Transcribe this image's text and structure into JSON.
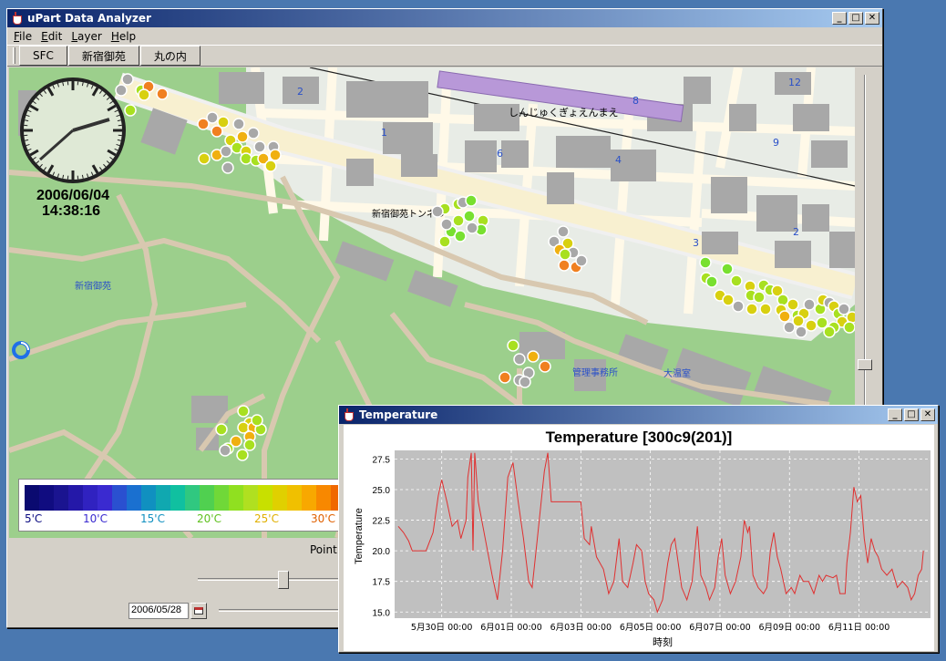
{
  "main_window": {
    "title": "uPart Data Analyzer",
    "menus": [
      "File",
      "Edit",
      "Layer",
      "Help"
    ],
    "toolbar": [
      "SFC",
      "新宿御苑",
      "丸の内"
    ],
    "date_display": "2006/06/04",
    "time_display": "14:38:16",
    "point_label": "Point:",
    "date_field": "2006/05/28"
  },
  "map": {
    "labels": {
      "tunnel": "新宿御苑トンネル",
      "kana": "しんじゅくぎょえんまえ",
      "gyoen": "新宿御苑",
      "office": "管理事務所",
      "greenhouse": "大温室",
      "n2a": "2",
      "n1": "1",
      "n6": "6",
      "n4": "4",
      "n8": "8",
      "n12": "12",
      "n9": "9",
      "n3": "3",
      "n2b": "2"
    },
    "colors": {
      "grass": "#9ccf8c",
      "road": "#fff9e8",
      "path": "#d8c8b0",
      "urban": "#e8ece6",
      "building": "#a8a8a8",
      "station": "#b898d8",
      "block_label": "#2a50c8"
    }
  },
  "legend": {
    "labels": [
      "5'C",
      "10'C",
      "15'C",
      "20'C",
      "25'C",
      "30'C"
    ],
    "label_colors": [
      "#0a0a80",
      "#3a2ad0",
      "#1090c0",
      "#60c020",
      "#e0b000",
      "#e06000"
    ],
    "colors": [
      "#0a0a70",
      "#100c80",
      "#1a1490",
      "#2418a8",
      "#3022c0",
      "#3a2ad0",
      "#2a50d0",
      "#1a70d0",
      "#1090c0",
      "#10a8b0",
      "#10c0a0",
      "#30c880",
      "#50d050",
      "#70d838",
      "#90e020",
      "#b0e020",
      "#c8e000",
      "#e0d000",
      "#f0c000",
      "#f8a800",
      "#f88800",
      "#f06800"
    ]
  },
  "sensor_dots": {
    "colors": {
      "gray": "#a8a8a8",
      "orange": "#f08020",
      "amber": "#f0b010",
      "yellow": "#d8d010",
      "lime": "#a8e020",
      "green": "#78e030"
    }
  },
  "chart_window": {
    "title": "Temperature"
  },
  "chart_data": {
    "type": "line",
    "title": "Temperature [300c9(201)]",
    "xlabel": "時刻",
    "ylabel": "Temperature",
    "ylim": [
      14.5,
      28.2
    ],
    "yticks": [
      "15.0",
      "17.5",
      "20.0",
      "22.5",
      "25.0",
      "27.5"
    ],
    "xticks": [
      "5月30日 00:00",
      "6月01日 00:00",
      "6月03日 00:00",
      "6月05日 00:00",
      "6月07日 00:00",
      "6月09日 00:00",
      "6月11日 00:00"
    ],
    "series_color": "#e03030",
    "x_start": "2006-05-28 18:00",
    "points": [
      [
        0,
        22
      ],
      [
        0.15,
        21.5
      ],
      [
        0.3,
        20.8
      ],
      [
        0.4,
        20
      ],
      [
        0.8,
        20
      ],
      [
        1.0,
        21.5
      ],
      [
        1.15,
        24.5
      ],
      [
        1.25,
        25.8
      ],
      [
        1.4,
        24
      ],
      [
        1.55,
        22
      ],
      [
        1.7,
        22.5
      ],
      [
        1.8,
        21
      ],
      [
        1.95,
        22.5
      ],
      [
        2.0,
        26
      ],
      [
        2.1,
        28
      ],
      [
        2.15,
        20
      ],
      [
        2.2,
        28
      ],
      [
        2.3,
        24
      ],
      [
        2.5,
        21
      ],
      [
        2.7,
        18
      ],
      [
        2.85,
        16
      ],
      [
        3.0,
        20
      ],
      [
        3.15,
        26
      ],
      [
        3.3,
        27.2
      ],
      [
        3.45,
        24
      ],
      [
        3.6,
        21
      ],
      [
        3.75,
        17.5
      ],
      [
        3.85,
        17
      ],
      [
        4.0,
        21
      ],
      [
        4.2,
        26.5
      ],
      [
        4.3,
        28
      ],
      [
        4.4,
        24
      ],
      [
        4.5,
        24
      ],
      [
        5.25,
        24
      ],
      [
        5.35,
        21
      ],
      [
        5.5,
        20.5
      ],
      [
        5.55,
        22
      ],
      [
        5.7,
        19.5
      ],
      [
        5.9,
        18.5
      ],
      [
        6.05,
        16.5
      ],
      [
        6.2,
        17.5
      ],
      [
        6.35,
        21
      ],
      [
        6.45,
        17.5
      ],
      [
        6.6,
        17
      ],
      [
        6.75,
        19
      ],
      [
        6.85,
        20.5
      ],
      [
        7.0,
        20
      ],
      [
        7.1,
        17.5
      ],
      [
        7.2,
        16.5
      ],
      [
        7.35,
        16
      ],
      [
        7.45,
        15
      ],
      [
        7.6,
        16
      ],
      [
        7.75,
        19
      ],
      [
        7.85,
        20.5
      ],
      [
        7.95,
        21
      ],
      [
        8.05,
        19
      ],
      [
        8.15,
        17
      ],
      [
        8.3,
        16
      ],
      [
        8.45,
        17.5
      ],
      [
        8.6,
        22
      ],
      [
        8.7,
        18
      ],
      [
        8.85,
        17
      ],
      [
        8.95,
        16
      ],
      [
        9.1,
        17
      ],
      [
        9.2,
        19.5
      ],
      [
        9.3,
        21
      ],
      [
        9.4,
        18
      ],
      [
        9.55,
        16.5
      ],
      [
        9.7,
        17.5
      ],
      [
        9.85,
        19.5
      ],
      [
        9.95,
        22.5
      ],
      [
        10.05,
        21.5
      ],
      [
        10.1,
        22
      ],
      [
        10.2,
        18
      ],
      [
        10.35,
        17
      ],
      [
        10.5,
        16.5
      ],
      [
        10.6,
        17
      ],
      [
        10.7,
        20
      ],
      [
        10.8,
        21.5
      ],
      [
        10.9,
        19.5
      ],
      [
        11.0,
        18.5
      ],
      [
        11.15,
        16.5
      ],
      [
        11.3,
        17
      ],
      [
        11.4,
        16.5
      ],
      [
        11.55,
        18
      ],
      [
        11.65,
        17.5
      ],
      [
        11.8,
        17.5
      ],
      [
        11.95,
        16.5
      ],
      [
        12.1,
        18
      ],
      [
        12.2,
        17.5
      ],
      [
        12.3,
        18
      ],
      [
        12.5,
        17.8
      ],
      [
        12.6,
        18
      ],
      [
        12.7,
        16.5
      ],
      [
        12.85,
        16.5
      ],
      [
        12.9,
        19
      ],
      [
        13.0,
        21.5
      ],
      [
        13.1,
        25.2
      ],
      [
        13.2,
        24
      ],
      [
        13.3,
        24.5
      ],
      [
        13.4,
        21
      ],
      [
        13.5,
        19
      ],
      [
        13.6,
        21
      ],
      [
        13.7,
        20
      ],
      [
        13.8,
        19.5
      ],
      [
        13.9,
        18.5
      ],
      [
        14.05,
        18
      ],
      [
        14.2,
        18.5
      ],
      [
        14.35,
        17
      ],
      [
        14.5,
        17.5
      ],
      [
        14.65,
        17
      ],
      [
        14.75,
        16
      ],
      [
        14.85,
        16.5
      ],
      [
        14.95,
        18
      ],
      [
        15.05,
        18.5
      ],
      [
        15.1,
        20
      ]
    ]
  }
}
